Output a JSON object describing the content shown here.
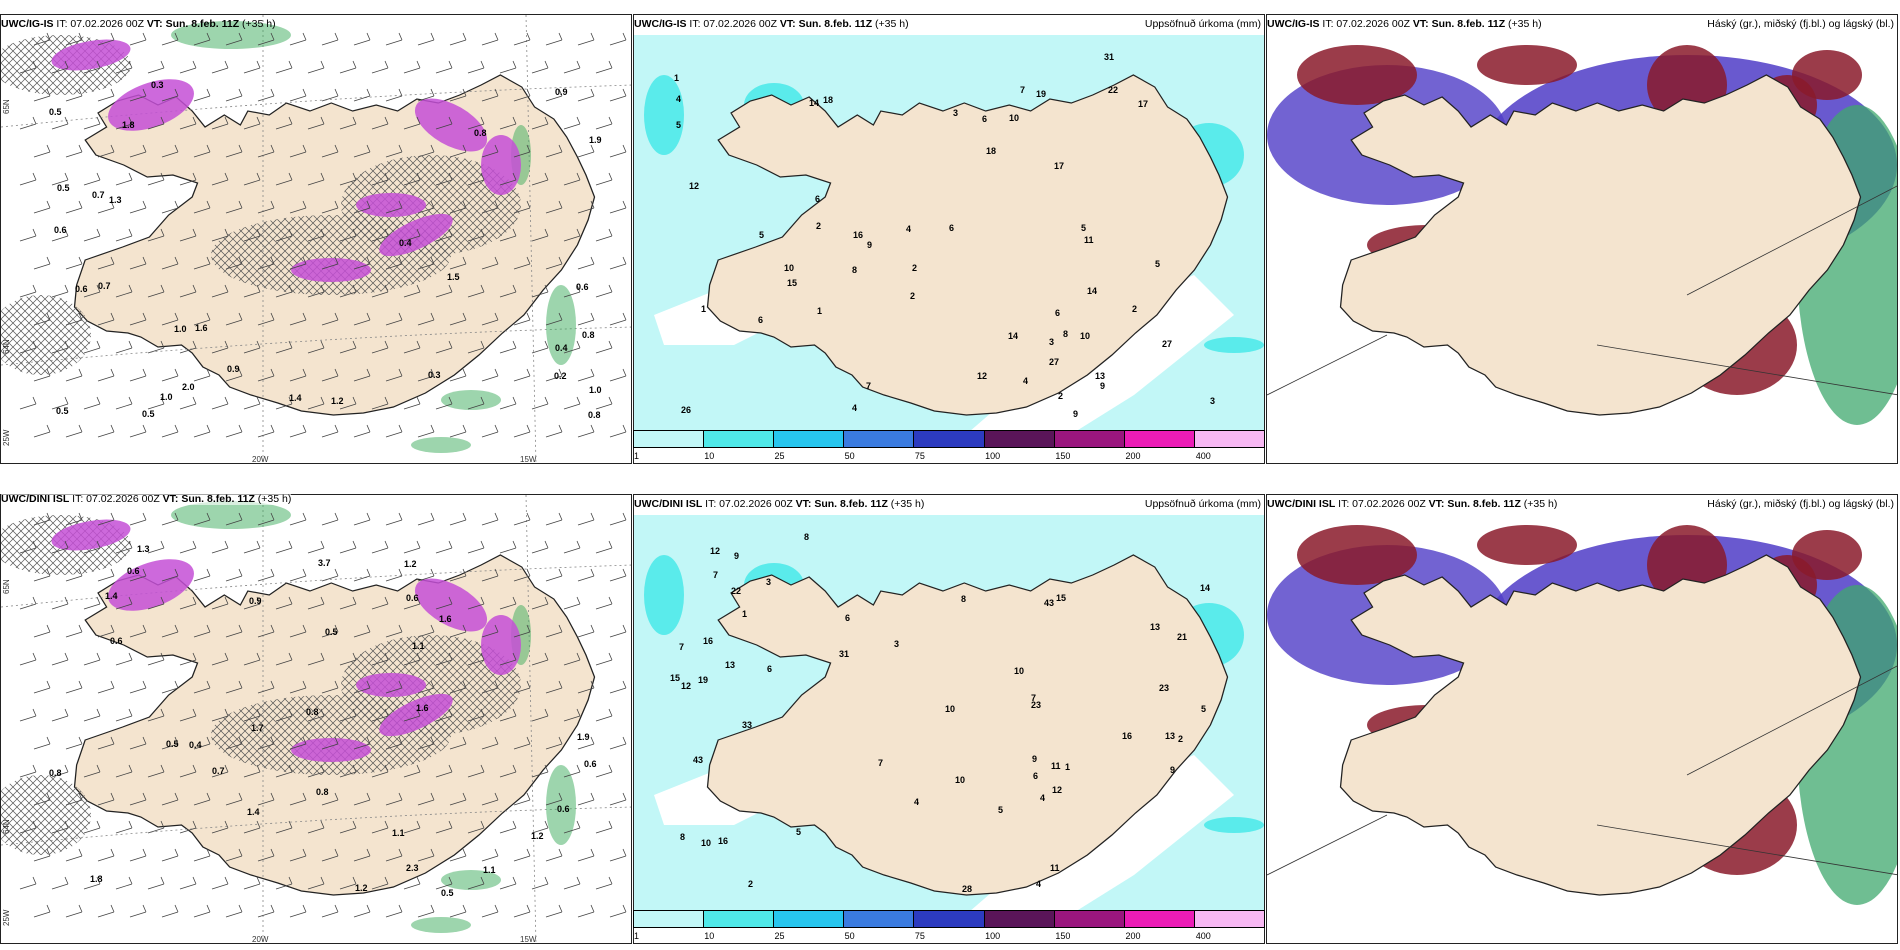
{
  "colors": {
    "land": "#f4e4cf",
    "precip_light": "#c2f7f7",
    "precip_mid": "#4fe9e9",
    "purple": "#c44fd6",
    "green": "#3cab5c",
    "cloud_blue": "#4f3cc7",
    "cloud_red": "#8a1a2a",
    "cloud_green": "#3fa86e"
  },
  "panels": {
    "p1": {
      "model": "UWC/IG-IS",
      "it_prefix": "IT: 07.02.2026 00Z",
      "vt_label": "VT: Sun. 8.feb. 11Z",
      "lead": "(+35 h)",
      "axis_x": [
        "20W",
        "15W"
      ],
      "axis_y": [
        "65N",
        "64N",
        "25W"
      ],
      "values": [
        "1.3",
        "0.5",
        "0.8",
        "1.4",
        "0.8",
        "1.6",
        "1.9",
        "0.2",
        "1.0",
        "0.6",
        "0.5",
        "0.9",
        "0.6",
        "0.7",
        "1.5",
        "0.3",
        "0.5",
        "0.8",
        "0.4",
        "2.0",
        "1.0",
        "1.2",
        "1.8",
        "0.7",
        "0.9",
        "0.5",
        "0.4",
        "0.3",
        "1.0",
        "0.6"
      ]
    },
    "p2": {
      "model": "UWC/IG-IS",
      "it_prefix": "IT: 07.02.2026 00Z",
      "vt_label": "VT: Sun. 8.feb. 11Z",
      "lead": "(+35 h)",
      "right_title": "Uppsöfnuð úrkoma (mm)",
      "colorbar_ticks": [
        "1",
        "10",
        "25",
        "50",
        "75",
        "100",
        "150",
        "200",
        "400"
      ],
      "colorbar_colors": [
        "#c2f7f7",
        "#4fe9e9",
        "#27c6ef",
        "#3a7be0",
        "#2c3bc0",
        "#5a1559",
        "#9a167e",
        "#ec1cb6",
        "#f7b8f3"
      ],
      "values": [
        "7",
        "14",
        "11",
        "13",
        "15",
        "10",
        "6",
        "14",
        "18",
        "27",
        "9",
        "2",
        "6",
        "12",
        "16",
        "4",
        "5",
        "3",
        "8",
        "10",
        "18",
        "27",
        "31",
        "17",
        "26",
        "22",
        "19",
        "17",
        "6",
        "9",
        "5",
        "2",
        "1",
        "4",
        "14",
        "9",
        "3",
        "2",
        "1",
        "2",
        "1",
        "10",
        "12",
        "7",
        "8",
        "5",
        "4",
        "3",
        "2",
        "6",
        "5",
        "6",
        "4"
      ]
    },
    "p3": {
      "model": "UWC/IG-IS",
      "it_prefix": "IT: 07.02.2026 00Z",
      "vt_label": "VT: Sun. 8.feb. 11Z",
      "lead": "(+35 h)",
      "right_title": "Háský (gr.), miðský (fj.bl.) og lágský (bl.)"
    },
    "p4": {
      "model": "UWC/DINI ISL",
      "it_prefix": "IT: 07.02.2026 00Z",
      "vt_label": "VT: Sun. 8.feb. 11Z",
      "lead": "(+35 h)",
      "axis_x": [
        "20W",
        "15W"
      ],
      "axis_y": [
        "65N",
        "64N",
        "25W"
      ],
      "values": [
        "1.1",
        "1.6",
        "1.2",
        "1.4",
        "2.3",
        "1.1",
        "0.8",
        "1.9",
        "1.7",
        "3.7",
        "0.6",
        "0.5",
        "1.6",
        "1.2",
        "0.5",
        "0.8",
        "0.6",
        "1.2",
        "1.4",
        "1.8",
        "0.5",
        "0.6",
        "0.8",
        "0.7",
        "0.9",
        "0.4",
        "1.1",
        "0.6",
        "1.3",
        "0.6"
      ]
    },
    "p5": {
      "model": "UWC/DINI ISL",
      "it_prefix": "IT: 07.02.2026 00Z",
      "vt_label": "VT: Sun. 8.feb. 11Z",
      "lead": "(+35 h)",
      "right_title": "Uppsöfnuð úrkoma (mm)",
      "colorbar_ticks": [
        "1",
        "10",
        "25",
        "50",
        "75",
        "100",
        "150",
        "200",
        "400"
      ],
      "colorbar_colors": [
        "#c2f7f7",
        "#4fe9e9",
        "#27c6ef",
        "#3a7be0",
        "#2c3bc0",
        "#5a1559",
        "#9a167e",
        "#ec1cb6",
        "#f7b8f3"
      ],
      "values": [
        "12",
        "9",
        "10",
        "12",
        "13",
        "16",
        "43",
        "7",
        "4",
        "6",
        "10",
        "15",
        "14",
        "16",
        "22",
        "21",
        "23",
        "13",
        "28",
        "43",
        "31",
        "33",
        "23",
        "19",
        "16",
        "7",
        "11",
        "9",
        "10",
        "8",
        "5",
        "3",
        "2",
        "1",
        "7",
        "6",
        "15",
        "13",
        "4",
        "8",
        "12",
        "11",
        "9",
        "10",
        "5",
        "6",
        "2",
        "1",
        "3",
        "4",
        "7",
        "8",
        "5"
      ]
    },
    "p6": {
      "model": "UWC/DINI ISL",
      "it_prefix": "IT: 07.02.2026 00Z",
      "vt_label": "VT: Sun. 8.feb. 11Z",
      "lead": "(+35 h)",
      "right_title": "Háský (gr.), miðský (fj.bl.) og lágský (bl.)"
    }
  }
}
